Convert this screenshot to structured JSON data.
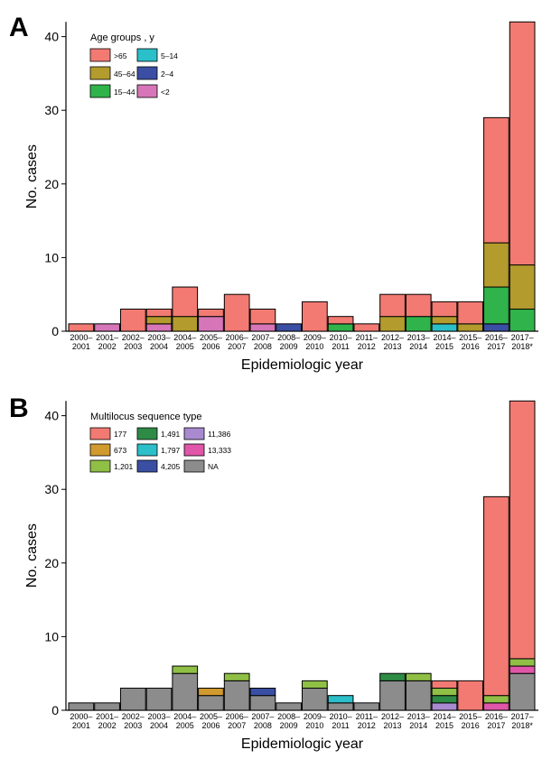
{
  "chart_data": [
    {
      "panel": "A",
      "type": "bar",
      "stacked": true,
      "xlabel": "Epidemiologic year",
      "ylabel": "No. cases",
      "ylim": [
        0,
        42
      ],
      "yticks": [
        0,
        10,
        20,
        30,
        40
      ],
      "categories": [
        [
          "2000–",
          "2001"
        ],
        [
          "2001–",
          "2002"
        ],
        [
          "2002–",
          "2003"
        ],
        [
          "2003–",
          "2004"
        ],
        [
          "2004–",
          "2005"
        ],
        [
          "2005–",
          "2006"
        ],
        [
          "2006–",
          "2007"
        ],
        [
          "2007–",
          "2008"
        ],
        [
          "2008–",
          "2009"
        ],
        [
          "2009–",
          "2010"
        ],
        [
          "2010–",
          "2011"
        ],
        [
          "2011–",
          "2012"
        ],
        [
          "2012–",
          "2013"
        ],
        [
          "2013–",
          "2014"
        ],
        [
          "2014–",
          "2015"
        ],
        [
          "2015–",
          "2016"
        ],
        [
          "2016–",
          "2017"
        ],
        [
          "2017–",
          "2018*"
        ]
      ],
      "legend_title": "Age groups , y",
      "legend_position": "top-left",
      "series": [
        {
          "name": "<2",
          "color": "#d676b8",
          "values": [
            0,
            1,
            0,
            1,
            0,
            2,
            0,
            1,
            0,
            0,
            0,
            0,
            0,
            0,
            0,
            0,
            0,
            0
          ]
        },
        {
          "name": "2–4",
          "color": "#3a4fa3",
          "values": [
            0,
            0,
            0,
            0,
            0,
            0,
            0,
            0,
            1,
            0,
            0,
            0,
            0,
            0,
            0,
            0,
            1,
            0
          ]
        },
        {
          "name": "5–14",
          "color": "#2bbfc9",
          "values": [
            0,
            0,
            0,
            0,
            0,
            0,
            0,
            0,
            0,
            0,
            0,
            0,
            0,
            0,
            1,
            0,
            0,
            0
          ]
        },
        {
          "name": "15–44",
          "color": "#2fb34a",
          "values": [
            0,
            0,
            0,
            0,
            0,
            0,
            0,
            0,
            0,
            0,
            1,
            0,
            0,
            2,
            0,
            0,
            5,
            3
          ]
        },
        {
          "name": "45–64",
          "color": "#b39b2d",
          "values": [
            0,
            0,
            0,
            1,
            2,
            0,
            0,
            0,
            0,
            0,
            0,
            0,
            2,
            0,
            1,
            1,
            6,
            6
          ]
        },
        {
          "name": ">65",
          "color": "#f27a72",
          "values": [
            1,
            0,
            3,
            1,
            4,
            1,
            5,
            2,
            0,
            4,
            1,
            1,
            3,
            3,
            2,
            3,
            17,
            33
          ]
        }
      ],
      "legend_layout": [
        [
          ">65",
          "5–14"
        ],
        [
          "45–64",
          "2–4"
        ],
        [
          "15–44",
          "<2"
        ]
      ]
    },
    {
      "panel": "B",
      "type": "bar",
      "stacked": true,
      "xlabel": "Epidemiologic year",
      "ylabel": "No. cases",
      "ylim": [
        0,
        42
      ],
      "yticks": [
        0,
        10,
        20,
        30,
        40
      ],
      "categories": [
        [
          "2000–",
          "2001"
        ],
        [
          "2001–",
          "2002"
        ],
        [
          "2002–",
          "2003"
        ],
        [
          "2003–",
          "2004"
        ],
        [
          "2004–",
          "2005"
        ],
        [
          "2005–",
          "2006"
        ],
        [
          "2006–",
          "2007"
        ],
        [
          "2007–",
          "2008"
        ],
        [
          "2008–",
          "2009"
        ],
        [
          "2009–",
          "2010"
        ],
        [
          "2010–",
          "2011"
        ],
        [
          "2011–",
          "2012"
        ],
        [
          "2012–",
          "2013"
        ],
        [
          "2013–",
          "2014"
        ],
        [
          "2014–",
          "2015"
        ],
        [
          "2015–",
          "2016"
        ],
        [
          "2016–",
          "2017"
        ],
        [
          "2017–",
          "2018*"
        ]
      ],
      "legend_title": "Multilocus sequence type",
      "legend_position": "top-left",
      "series": [
        {
          "name": "NA",
          "color": "#8c8c8c",
          "values": [
            1,
            1,
            3,
            3,
            5,
            2,
            4,
            2,
            1,
            3,
            1,
            1,
            4,
            4,
            0,
            0,
            0,
            5
          ]
        },
        {
          "name": "13,333",
          "color": "#e056a8",
          "values": [
            0,
            0,
            0,
            0,
            0,
            0,
            0,
            0,
            0,
            0,
            0,
            0,
            0,
            0,
            0,
            0,
            1,
            1
          ]
        },
        {
          "name": "11,386",
          "color": "#a98ad0",
          "values": [
            0,
            0,
            0,
            0,
            0,
            0,
            0,
            0,
            0,
            0,
            0,
            0,
            0,
            0,
            1,
            0,
            0,
            0
          ]
        },
        {
          "name": "4,205",
          "color": "#3a4fa3",
          "values": [
            0,
            0,
            0,
            0,
            0,
            0,
            0,
            1,
            0,
            0,
            0,
            0,
            0,
            0,
            0,
            0,
            0,
            0
          ]
        },
        {
          "name": "1,797",
          "color": "#2bbfc9",
          "values": [
            0,
            0,
            0,
            0,
            0,
            0,
            0,
            0,
            0,
            0,
            1,
            0,
            0,
            0,
            0,
            0,
            0,
            0
          ]
        },
        {
          "name": "1,491",
          "color": "#2e8b45",
          "values": [
            0,
            0,
            0,
            0,
            0,
            0,
            0,
            0,
            0,
            0,
            0,
            0,
            1,
            0,
            1,
            0,
            0,
            0
          ]
        },
        {
          "name": "1,201",
          "color": "#8fbf45",
          "values": [
            0,
            0,
            0,
            0,
            1,
            0,
            1,
            0,
            0,
            1,
            0,
            0,
            0,
            1,
            1,
            0,
            1,
            1
          ]
        },
        {
          "name": "673",
          "color": "#d19a2e",
          "values": [
            0,
            0,
            0,
            0,
            0,
            1,
            0,
            0,
            0,
            0,
            0,
            0,
            0,
            0,
            0,
            0,
            0,
            0
          ]
        },
        {
          "name": "177",
          "color": "#f27a72",
          "values": [
            0,
            0,
            0,
            0,
            0,
            0,
            0,
            0,
            0,
            0,
            0,
            0,
            0,
            0,
            1,
            4,
            27,
            35
          ]
        }
      ],
      "legend_layout": [
        [
          "177",
          "1,491",
          "11,386"
        ],
        [
          "673",
          "1,797",
          "13,333"
        ],
        [
          "1,201",
          "4,205",
          "NA"
        ]
      ]
    }
  ]
}
